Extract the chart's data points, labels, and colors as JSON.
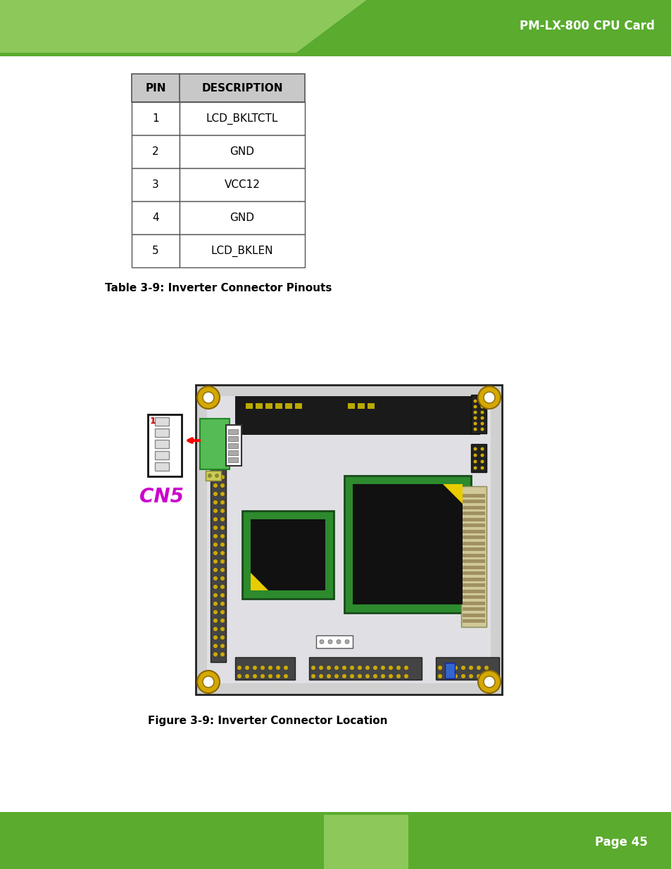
{
  "page_title": "PM-LX-800 CPU Card",
  "page_number": "Page 45",
  "header_green_dark": "#5aab2e",
  "header_green_light": "#8dc85a",
  "footer_green_dark": "#5aab2e",
  "footer_green_light": "#8dc85a",
  "line_color": "#5aab2e",
  "table_caption": "Table 3-9: Inverter Connector Pinouts",
  "figure_caption": "Figure 3-9: Inverter Connector Location",
  "table_header_bg": "#c8c8c8",
  "table_border": "#555555",
  "table_pins": [
    "1",
    "2",
    "3",
    "4",
    "5"
  ],
  "table_descriptions": [
    "LCD_BKLTCTL",
    "GND",
    "VCC12",
    "GND",
    "LCD_BKLEN"
  ],
  "cn5_label_color": "#cc00cc",
  "background_color": "#ffffff",
  "board_bg": "#d0d0d0",
  "board_inner": "#e0e0e4",
  "board_dark_strip": "#1a1a1a",
  "chip_green": "#2d8a2d",
  "chip_black": "#111111",
  "yellow_mark": "#e8cc00",
  "gold_corner": "#d4a800",
  "connector_gray": "#555555",
  "connector_yellow_pins": "#ccaa00",
  "right_connector_bg": "#d8cca0",
  "left_strip_bg": "#555555"
}
